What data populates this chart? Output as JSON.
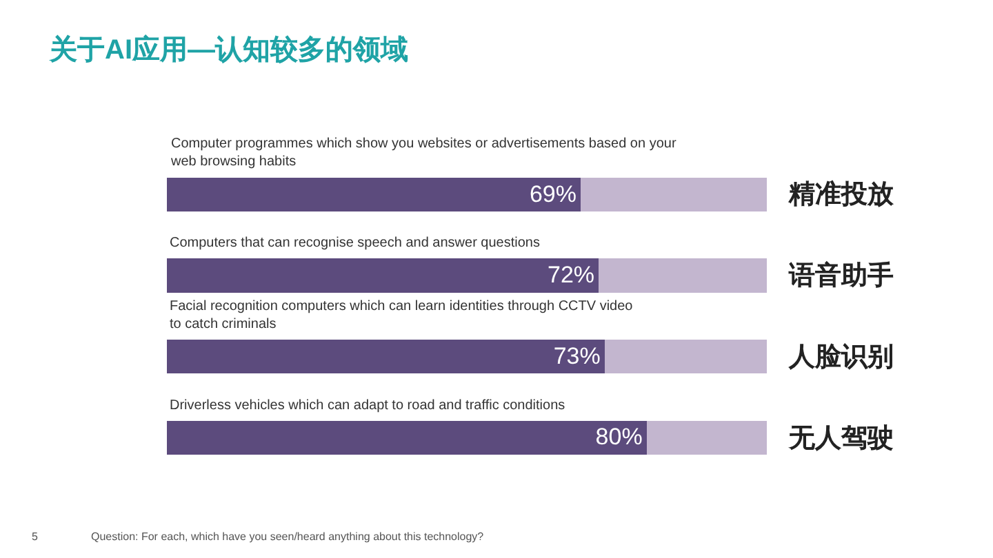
{
  "chart_data": {
    "type": "bar",
    "orientation": "horizontal",
    "stacked": true,
    "title": "关于AI应用—认知较多的领域",
    "categories": [
      "Computer programmes which show you websites or advertisements based on your web browsing habits",
      "Computers that can recognise speech and answer questions",
      "Facial recognition computers which can learn identities through CCTV video to catch criminals",
      "Driverless vehicles which can adapt to road and traffic conditions"
    ],
    "series": [
      {
        "color": "#5c4b7d",
        "values": [
          69,
          72,
          73,
          80
        ],
        "value_labels": [
          "69%",
          "72%",
          "73%",
          "80%"
        ]
      },
      {
        "color": "#c3b6cf",
        "values": [
          31,
          28,
          27,
          20
        ]
      }
    ],
    "xlim": [
      0,
      100
    ],
    "tick_labels": false,
    "annotations": [
      "精准投放",
      "语音助手",
      "人脸识别",
      "无人驾驶",
      "5",
      "Question: For each, which have you seen/heard anything about this technology?"
    ]
  }
}
